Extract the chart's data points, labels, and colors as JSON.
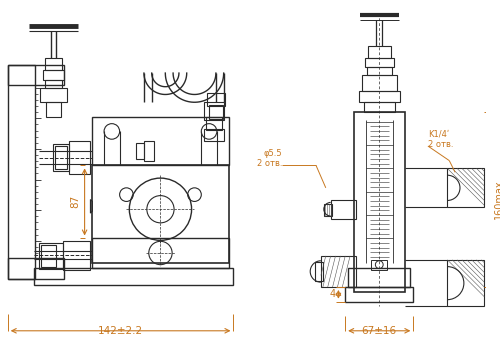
{
  "bg_color": "#ffffff",
  "line_color": "#2a2a2a",
  "dim_color": "#c87820",
  "fig_width": 5.0,
  "fig_height": 3.64,
  "dpi": 100,
  "annotations": {
    "dim1_text": "142±2.2",
    "dim2_text": "67±16",
    "dim3_text": "87",
    "dim4_text": "4",
    "dim5_text": "φ5.5\n2 отв.",
    "dim6_text": "K1/4ʹ\n2 отв.",
    "dim7_text": "160max"
  }
}
